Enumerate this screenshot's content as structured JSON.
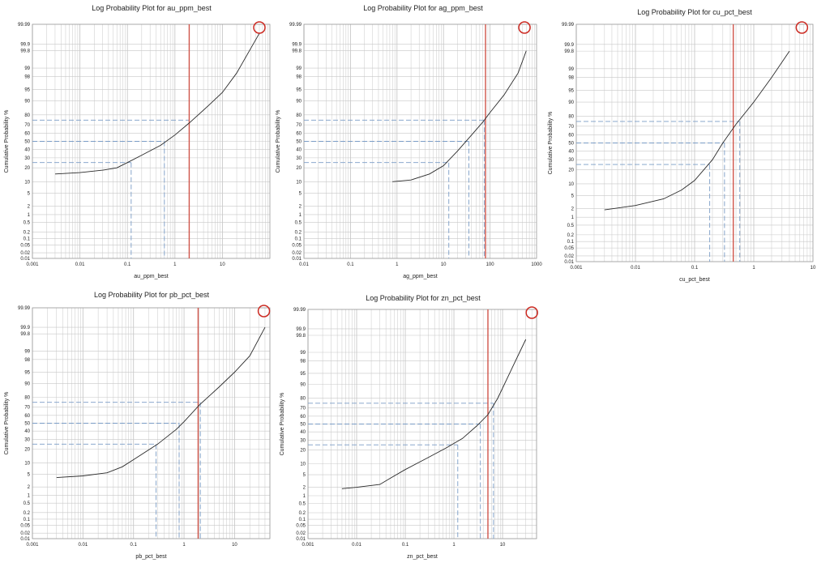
{
  "chart_data": [
    {
      "type": "line",
      "title": "Log Probability Plot for au_ppm_best",
      "xlabel": "au_ppm_best",
      "ylabel": "Cumulative Probability %",
      "x_scale": "log",
      "y_scale": "probability",
      "xlim": [
        0.001,
        100
      ],
      "ylim": [
        0.01,
        99.99
      ],
      "x_ticks": [
        "0.001",
        "0.01",
        "0.1",
        "1",
        "10"
      ],
      "y_ticks": [
        "99.99",
        "99.9",
        "99.8",
        "99",
        "98",
        "95",
        "90",
        "80",
        "70",
        "60",
        "50",
        "40",
        "30",
        "20",
        "10",
        "5",
        "2",
        "1",
        "0.5",
        "0.2",
        "0.1",
        "0.05",
        "0.02",
        "0.01"
      ],
      "series": [
        {
          "x": [
            0.003,
            0.01,
            0.03,
            0.06,
            0.1,
            0.2,
            0.5,
            1,
            2,
            5,
            10,
            20,
            40,
            60
          ],
          "y": [
            15,
            16,
            18,
            20,
            25,
            33,
            45,
            58,
            72,
            87,
            94,
            98.5,
            99.85,
            99.97
          ]
        }
      ],
      "percentiles": {
        "p25": 0.12,
        "p50": 0.6,
        "p75": 2.0
      },
      "red_line_x": 2.0,
      "highlight_circle": {
        "x": 60,
        "y": 99.98
      },
      "grid": true
    },
    {
      "type": "line",
      "title": "Log Probability Plot for ag_ppm_best",
      "xlabel": "ag_ppm_best",
      "ylabel": "Cumulative Probability %",
      "x_scale": "log",
      "y_scale": "probability",
      "xlim": [
        0.01,
        1000
      ],
      "ylim": [
        0.01,
        99.99
      ],
      "x_ticks": [
        "0.01",
        "0.1",
        "1",
        "10",
        "100",
        "1000"
      ],
      "y_ticks": [
        "99.99",
        "99.9",
        "99.8",
        "99",
        "98",
        "95",
        "90",
        "80",
        "70",
        "60",
        "50",
        "40",
        "30",
        "20",
        "10",
        "5",
        "2",
        "1",
        "0.5",
        "0.2",
        "0.1",
        "0.05",
        "0.02",
        "0.01"
      ],
      "series": [
        {
          "x": [
            0.8,
            2,
            5,
            10,
            20,
            40,
            70,
            100,
            200,
            400,
            600
          ],
          "y": [
            10,
            11,
            15,
            22,
            38,
            58,
            73,
            82,
            93,
            98.5,
            99.8
          ]
        }
      ],
      "percentiles": {
        "p25": 13,
        "p50": 35,
        "p75": 75
      },
      "red_line_x": 80,
      "highlight_circle": {
        "x": 550,
        "y": 99.98
      },
      "grid": true
    },
    {
      "type": "line",
      "title": "Log Probability Plot for cu_pct_best",
      "xlabel": "cu_pct_best",
      "ylabel": "Cumulative Probability %",
      "x_scale": "log",
      "y_scale": "probability",
      "xlim": [
        0.001,
        10
      ],
      "ylim": [
        0.01,
        99.99
      ],
      "x_ticks": [
        "0.001",
        "0.01",
        "0.1",
        "1",
        "10"
      ],
      "y_ticks": [
        "99.99",
        "99.9",
        "99.8",
        "99",
        "98",
        "95",
        "90",
        "80",
        "70",
        "60",
        "50",
        "40",
        "30",
        "20",
        "10",
        "5",
        "2",
        "1",
        "0.5",
        "0.2",
        "0.1",
        "0.05",
        "0.02",
        "0.01"
      ],
      "series": [
        {
          "x": [
            0.003,
            0.01,
            0.03,
            0.06,
            0.1,
            0.2,
            0.3,
            0.5,
            1,
            2,
            4
          ],
          "y": [
            1.8,
            2.5,
            4,
            7,
            12,
            30,
            50,
            72,
            90,
            98,
            99.8
          ]
        }
      ],
      "percentiles": {
        "p25": 0.18,
        "p50": 0.32,
        "p75": 0.58
      },
      "red_line_x": 0.45,
      "highlight_circle": {
        "x": 6.5,
        "y": 99.98
      },
      "grid": true
    },
    {
      "type": "line",
      "title": "Log Probability Plot for pb_pct_best",
      "xlabel": "pb_pct_best",
      "ylabel": "Cumulative Probability %",
      "x_scale": "log",
      "y_scale": "probability",
      "xlim": [
        0.001,
        50
      ],
      "ylim": [
        0.01,
        99.99
      ],
      "x_ticks": [
        "0.001",
        "0.01",
        "0.1",
        "1",
        "10"
      ],
      "y_ticks": [
        "99.99",
        "99.9",
        "99.8",
        "99",
        "98",
        "95",
        "90",
        "80",
        "70",
        "60",
        "50",
        "40",
        "30",
        "20",
        "10",
        "5",
        "2",
        "1",
        "0.5",
        "0.2",
        "0.1",
        "0.05",
        "0.02",
        "0.01"
      ],
      "series": [
        {
          "x": [
            0.003,
            0.01,
            0.03,
            0.06,
            0.1,
            0.3,
            0.7,
            1,
            2,
            5,
            10,
            20,
            40
          ],
          "y": [
            4,
            4.5,
            5.5,
            8,
            12,
            25,
            42,
            52,
            72,
            88,
            95,
            98.5,
            99.9
          ]
        }
      ],
      "percentiles": {
        "p25": 0.28,
        "p50": 0.8,
        "p75": 2.1
      },
      "red_line_x": 1.9,
      "highlight_circle": {
        "x": 38,
        "y": 99.98
      },
      "grid": true
    },
    {
      "type": "line",
      "title": "Log Probability Plot for zn_pct_best",
      "xlabel": "zn_pct_best",
      "ylabel": "Cumulative Probability %",
      "x_scale": "log",
      "y_scale": "probability",
      "xlim": [
        0.001,
        50
      ],
      "ylim": [
        0.01,
        99.99
      ],
      "x_ticks": [
        "0.001",
        "0.01",
        "0.1",
        "1",
        "10"
      ],
      "y_ticks": [
        "99.99",
        "99.9",
        "99.8",
        "99",
        "98",
        "95",
        "90",
        "80",
        "70",
        "60",
        "50",
        "40",
        "30",
        "20",
        "10",
        "5",
        "2",
        "1",
        "0.5",
        "0.2",
        "0.1",
        "0.05",
        "0.02",
        "0.01"
      ],
      "series": [
        {
          "x": [
            0.005,
            0.01,
            0.03,
            0.05,
            0.1,
            0.3,
            0.7,
            1.5,
            3,
            5,
            8,
            15,
            30
          ],
          "y": [
            1.8,
            2,
            2.5,
            4,
            7,
            14,
            22,
            32,
            48,
            62,
            80,
            96,
            99.7
          ]
        }
      ],
      "percentiles": {
        "p25": 1.2,
        "p50": 3.5,
        "p75": 6.5
      },
      "red_line_x": 5.0,
      "highlight_circle": {
        "x": 40,
        "y": 99.98
      },
      "grid": true
    }
  ],
  "style": {
    "curve_color": "#2a2a2a",
    "percentile_color": "#7a9cc6",
    "red_line_color": "#d0554a",
    "circle_color": "#cc2a22",
    "grid_color": "#c8c8c8",
    "frame_color": "#9a9a9a"
  }
}
